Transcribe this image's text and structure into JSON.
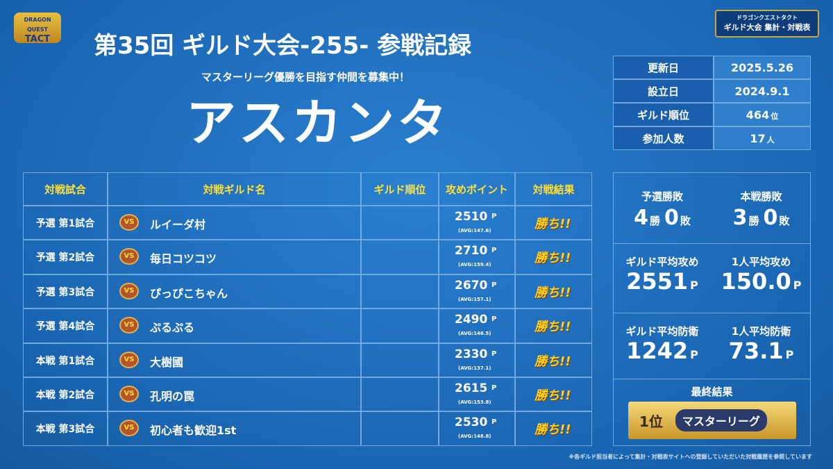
{
  "logo": {
    "line1": "DRAGON QUEST",
    "line2": "TACT"
  },
  "badge": {
    "small": "ドラゴンクエストタクト",
    "main": "ギルド大会 集計・対戦表"
  },
  "header": {
    "title": "第35回 ギルド大会-255- 参戦記録",
    "subtitle": "マスターリーグ優勝を目指す仲間を募集中！",
    "guild_name": "アスカンタ"
  },
  "info": [
    {
      "label": "更新日",
      "value": "2025.5.26"
    },
    {
      "label": "設立日",
      "value": "2024.9.1"
    },
    {
      "label": "ギルド順位",
      "value": "464",
      "unit": "位"
    },
    {
      "label": "参加人数",
      "value": "17",
      "unit": "人"
    }
  ],
  "table": {
    "headers": [
      "対戦試合",
      "対戦ギルド名",
      "ギルド順位",
      "攻めポイント",
      "対戦結果"
    ],
    "point_unit": "P",
    "vs": "VS",
    "rows": [
      {
        "match": "予選 第1試合",
        "opponent": "ルイーダ村",
        "points": "2510",
        "avg": "(AVG:147.6)",
        "result": "勝ち!!"
      },
      {
        "match": "予選 第2試合",
        "opponent": "毎日コツコツ",
        "points": "2710",
        "avg": "(AVG:159.4)",
        "result": "勝ち!!"
      },
      {
        "match": "予選 第3試合",
        "opponent": "ぴっぴこちゃん",
        "points": "2670",
        "avg": "(AVG:157.1)",
        "result": "勝ち!!"
      },
      {
        "match": "予選 第4試合",
        "opponent": "ぷるぷる",
        "points": "2490",
        "avg": "(AVG:146.5)",
        "result": "勝ち!!"
      },
      {
        "match": "本戦 第1試合",
        "opponent": "大樹國",
        "points": "2330",
        "avg": "(AVG:137.1)",
        "result": "勝ち!!"
      },
      {
        "match": "本戦 第2試合",
        "opponent": "孔明の罠",
        "points": "2615",
        "avg": "(AVG:153.8)",
        "result": "勝ち!!"
      },
      {
        "match": "本戦 第3試合",
        "opponent": "初心者も歓迎1st",
        "points": "2530",
        "avg": "(AVG:148.8)",
        "result": "勝ち!!"
      }
    ]
  },
  "stats": {
    "record": [
      {
        "label": "予選勝敗",
        "wins": "4",
        "win_unit": "勝",
        "losses": "0",
        "loss_unit": "敗"
      },
      {
        "label": "本戦勝敗",
        "wins": "3",
        "win_unit": "勝",
        "losses": "0",
        "loss_unit": "敗"
      }
    ],
    "cards": [
      {
        "label": "ギルド平均攻め",
        "value": "2551",
        "unit": "P"
      },
      {
        "label": "1人平均攻め",
        "value": "150.0",
        "unit": "P"
      },
      {
        "label": "ギルド平均防衛",
        "value": "1242",
        "unit": "P"
      },
      {
        "label": "1人平均防衛",
        "value": "73.1",
        "unit": "P"
      }
    ],
    "final": {
      "label": "最終結果",
      "rank": "1位",
      "league": "マスターリーグ"
    }
  },
  "footnote": "※各ギルド担当者によって集計・対戦表サイトへの登録していただいた対戦履歴を参照しています"
}
